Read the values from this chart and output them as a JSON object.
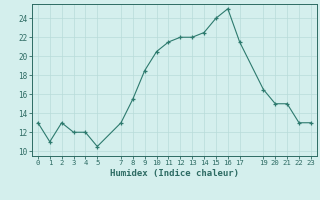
{
  "x": [
    0,
    1,
    2,
    3,
    4,
    5,
    7,
    8,
    9,
    10,
    11,
    12,
    13,
    14,
    15,
    16,
    17,
    19,
    20,
    21,
    22,
    23
  ],
  "y": [
    13,
    11,
    13,
    12,
    12,
    10.5,
    13,
    15.5,
    18.5,
    20.5,
    21.5,
    22,
    22,
    22.5,
    24,
    25,
    21.5,
    16.5,
    15,
    15,
    13,
    13
  ],
  "xlabel": "Humidex (Indice chaleur)",
  "line_color": "#2d7a6e",
  "marker": "+",
  "marker_size": 3.5,
  "bg_color": "#d4efed",
  "grid_color": "#b8dcd9",
  "text_color": "#2d6b63",
  "xlim": [
    -0.5,
    23.5
  ],
  "ylim": [
    9.5,
    25.5
  ],
  "xticks": [
    0,
    1,
    2,
    3,
    4,
    5,
    7,
    8,
    9,
    10,
    11,
    12,
    13,
    14,
    15,
    16,
    17,
    19,
    20,
    21,
    22,
    23
  ],
  "yticks": [
    10,
    12,
    14,
    16,
    18,
    20,
    22,
    24
  ]
}
